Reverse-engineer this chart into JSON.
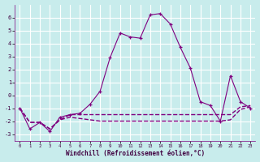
{
  "xlabel": "Windchill (Refroidissement éolien,°C)",
  "bg_color": "#c8ecec",
  "grid_color": "#a8d8d8",
  "line_color": "#800080",
  "xlim": [
    -0.5,
    23.5
  ],
  "ylim": [
    -3.5,
    7.0
  ],
  "yticks": [
    -3,
    -2,
    -1,
    0,
    1,
    2,
    3,
    4,
    5,
    6
  ],
  "xticks": [
    0,
    1,
    2,
    3,
    4,
    5,
    6,
    7,
    8,
    9,
    10,
    11,
    12,
    13,
    14,
    15,
    16,
    17,
    18,
    19,
    20,
    21,
    22,
    23
  ],
  "series0_x": [
    0,
    1,
    2,
    3,
    4,
    5,
    6,
    7,
    8,
    9,
    10,
    11,
    12,
    13,
    14,
    15,
    16,
    17,
    18,
    19,
    20,
    21,
    22,
    23
  ],
  "series0_y": [
    -1.0,
    -2.6,
    -2.1,
    -2.8,
    -1.7,
    -1.5,
    -1.4,
    -0.7,
    0.3,
    2.9,
    4.8,
    4.5,
    4.4,
    6.2,
    6.3,
    5.5,
    3.7,
    2.1,
    -0.5,
    -0.8,
    -2.0,
    1.5,
    -0.5,
    -1.0
  ],
  "series1_x": [
    0,
    1,
    2,
    3,
    4,
    5,
    6,
    7,
    8,
    9,
    10,
    11,
    12,
    13,
    14,
    15,
    16,
    17,
    18,
    19,
    20,
    21,
    22,
    23
  ],
  "series1_y": [
    -1.0,
    -2.1,
    -2.1,
    -2.6,
    -1.9,
    -1.7,
    -1.8,
    -1.9,
    -2.0,
    -2.0,
    -2.0,
    -2.0,
    -2.0,
    -2.0,
    -2.0,
    -2.0,
    -2.0,
    -2.0,
    -2.0,
    -2.0,
    -2.0,
    -1.9,
    -1.1,
    -0.9
  ],
  "series2_x": [
    0,
    1,
    2,
    3,
    4,
    5,
    6,
    7,
    8,
    9,
    10,
    11,
    12,
    13,
    14,
    15,
    16,
    17,
    18,
    19,
    20,
    21,
    22,
    23
  ],
  "series2_y": [
    -1.0,
    -2.1,
    -2.1,
    -2.6,
    -1.9,
    -1.5,
    -1.5,
    -1.5,
    -1.5,
    -1.5,
    -1.5,
    -1.5,
    -1.5,
    -1.5,
    -1.5,
    -1.5,
    -1.5,
    -1.5,
    -1.5,
    -1.5,
    -1.5,
    -1.5,
    -0.9,
    -0.8
  ]
}
